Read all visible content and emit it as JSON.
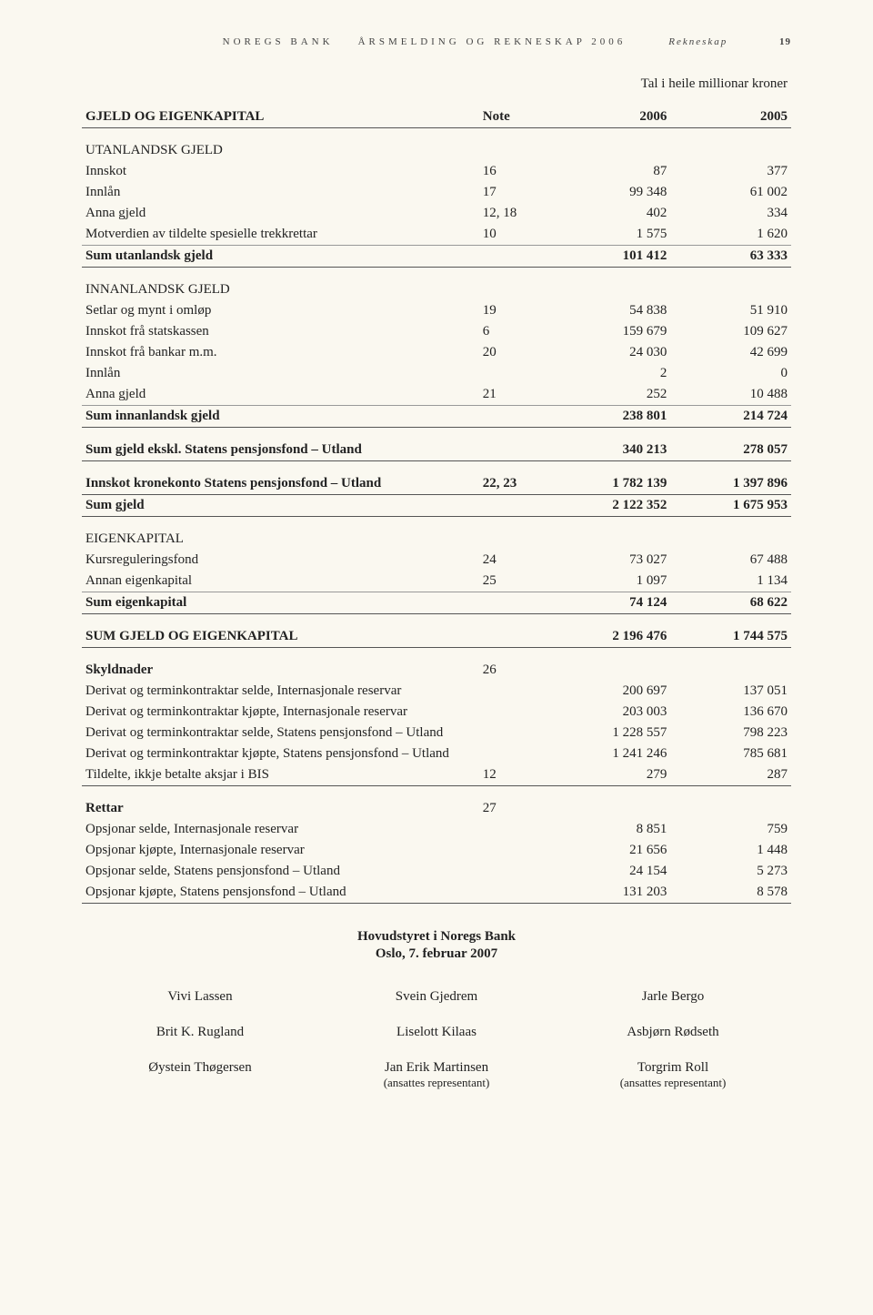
{
  "header": {
    "bank": "NOREGS BANK",
    "doc": "ÅRSMELDING OG REKNESKAP 2006",
    "section": "Rekneskap",
    "pagenum": "19"
  },
  "caption": "Tal i heile millionar kroner",
  "table_title": "GJELD OG EIGENKAPITAL",
  "col_note": "Note",
  "col_y1": "2006",
  "col_y2": "2005",
  "groups": {
    "utenlandsk": {
      "title": "UTANLANDSK GJELD",
      "rows": [
        {
          "label": "Innskot",
          "note": "16",
          "y1": "87",
          "y2": "377"
        },
        {
          "label": "Innlån",
          "note": "17",
          "y1": "99 348",
          "y2": "61 002"
        },
        {
          "label": "Anna gjeld",
          "note": "12, 18",
          "y1": "402",
          "y2": "334"
        },
        {
          "label": "Motverdien av tildelte spesielle trekkrettar",
          "note": "10",
          "y1": "1 575",
          "y2": "1 620"
        }
      ],
      "sum": {
        "label": "Sum utanlandsk gjeld",
        "y1": "101 412",
        "y2": "63 333"
      }
    },
    "innanlandsk": {
      "title": "INNANLANDSK GJELD",
      "rows": [
        {
          "label": "Setlar og mynt i omløp",
          "note": "19",
          "y1": "54 838",
          "y2": "51 910"
        },
        {
          "label": "Innskot frå statskassen",
          "note": "6",
          "y1": "159 679",
          "y2": "109 627"
        },
        {
          "label": "Innskot frå bankar m.m.",
          "note": "20",
          "y1": "24 030",
          "y2": "42 699"
        },
        {
          "label": "Innlån",
          "note": "",
          "y1": "2",
          "y2": "0"
        },
        {
          "label": "Anna gjeld",
          "note": "21",
          "y1": "252",
          "y2": "10 488"
        }
      ],
      "sum": {
        "label": "Sum innanlandsk gjeld",
        "y1": "238 801",
        "y2": "214 724"
      }
    },
    "sum_ekskl": {
      "label": "Sum gjeld ekskl. Statens pensjonsfond – Utland",
      "y1": "340 213",
      "y2": "278 057"
    },
    "krone": {
      "label": "Innskot kronekonto Statens pensjonsfond – Utland",
      "note": "22, 23",
      "y1": "1 782 139",
      "y2": "1 397 896"
    },
    "sum_gjeld": {
      "label": "Sum gjeld",
      "y1": "2 122 352",
      "y2": "1 675 953"
    },
    "eigenkapital": {
      "title": "EIGENKAPITAL",
      "rows": [
        {
          "label": "Kursreguleringsfond",
          "note": "24",
          "y1": "73 027",
          "y2": "67 488"
        },
        {
          "label": "Annan eigenkapital",
          "note": "25",
          "y1": "1 097",
          "y2": "1 134"
        }
      ],
      "sum": {
        "label": "Sum eigenkapital",
        "y1": "74 124",
        "y2": "68 622"
      }
    },
    "total": {
      "label": "SUM GJELD OG EIGENKAPITAL",
      "y1": "2 196 476",
      "y2": "1 744 575"
    },
    "skyldnader": {
      "title": "Skyldnader",
      "note": "26",
      "rows": [
        {
          "label": "Derivat og terminkontraktar selde, Internasjonale reservar",
          "y1": "200 697",
          "y2": "137 051"
        },
        {
          "label": "Derivat og terminkontraktar kjøpte, Internasjonale reservar",
          "y1": "203 003",
          "y2": "136 670"
        },
        {
          "label": "Derivat og terminkontraktar selde, Statens pensjonsfond – Utland",
          "y1": "1 228 557",
          "y2": "798 223"
        },
        {
          "label": "Derivat og terminkontraktar kjøpte, Statens pensjonsfond – Utland",
          "y1": "1 241 246",
          "y2": "785 681"
        },
        {
          "label": "Tildelte, ikkje betalte aksjar i BIS",
          "note": "12",
          "y1": "279",
          "y2": "287"
        }
      ]
    },
    "rettar": {
      "title": "Rettar",
      "note": "27",
      "rows": [
        {
          "label": "Opsjonar selde, Internasjonale reservar",
          "y1": "8 851",
          "y2": "759"
        },
        {
          "label": "Opsjonar kjøpte, Internasjonale reservar",
          "y1": "21 656",
          "y2": "1 448"
        },
        {
          "label": "Opsjonar selde, Statens pensjonsfond – Utland",
          "y1": "24 154",
          "y2": "5 273"
        },
        {
          "label": "Opsjonar kjøpte, Statens pensjonsfond – Utland",
          "y1": "131 203",
          "y2": "8 578"
        }
      ]
    }
  },
  "footer": {
    "board": "Hovudstyret i Noregs Bank",
    "date": "Oslo, 7. februar 2007",
    "sigs": [
      [
        "Vivi Lassen",
        "Svein Gjedrem",
        "Jarle Bergo"
      ],
      [
        "Brit K. Rugland",
        "Liselott Kilaas",
        "Asbjørn Rødseth"
      ],
      [
        "Øystein Thøgersen",
        "Jan Erik Martinsen",
        "Torgrim Roll"
      ]
    ],
    "rep": "(ansattes representant)"
  }
}
